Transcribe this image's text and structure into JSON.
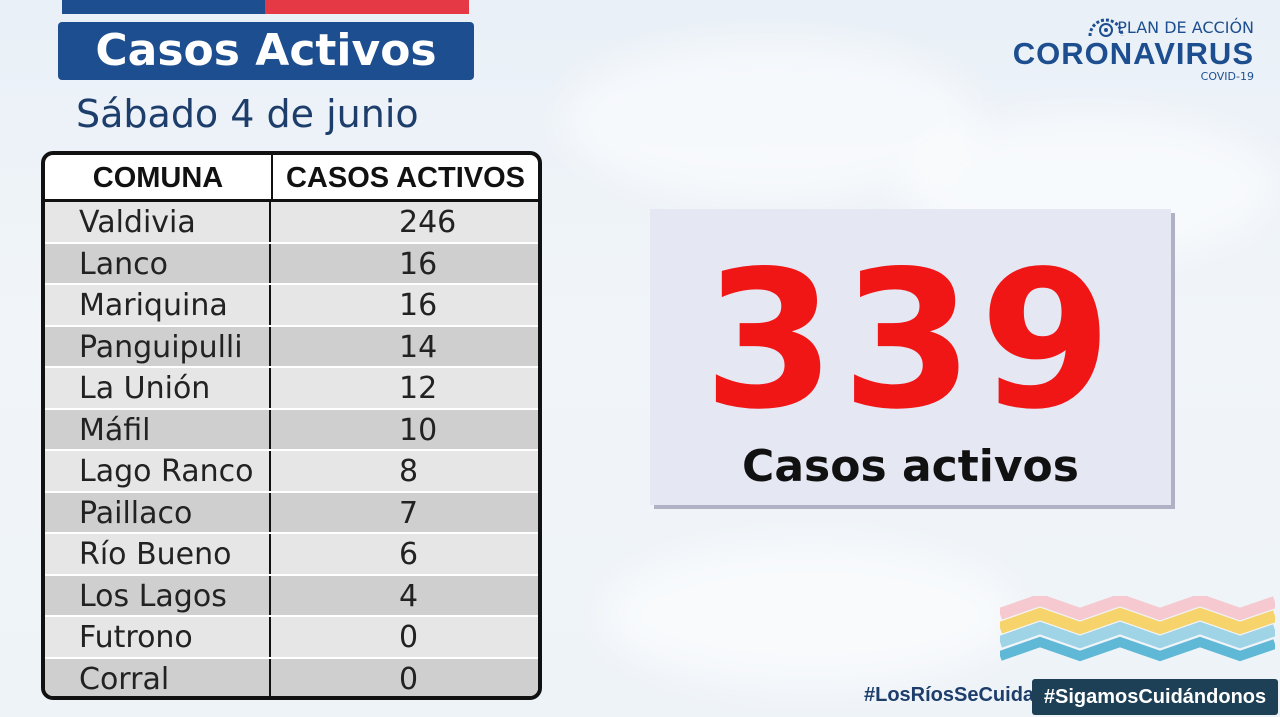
{
  "header": {
    "title": "Casos Activos",
    "date": "Sábado 4 de junio"
  },
  "logo": {
    "plan": "PLAN DE ACCIÓN",
    "main": "CORONAVIRUS",
    "sub": "COVID-19"
  },
  "table": {
    "headers": [
      "COMUNA",
      "CASOS ACTIVOS"
    ],
    "rows": [
      {
        "comuna": "Valdivia",
        "casos": "246"
      },
      {
        "comuna": "Lanco",
        "casos": "16"
      },
      {
        "comuna": "Mariquina",
        "casos": "16"
      },
      {
        "comuna": "Panguipulli",
        "casos": "14"
      },
      {
        "comuna": "La Unión",
        "casos": "12"
      },
      {
        "comuna": "Máfil",
        "casos": "10"
      },
      {
        "comuna": "Lago Ranco",
        "casos": "8"
      },
      {
        "comuna": "Paillaco",
        "casos": "7"
      },
      {
        "comuna": "Río Bueno",
        "casos": "6"
      },
      {
        "comuna": "Los Lagos",
        "casos": "4"
      },
      {
        "comuna": "Futrono",
        "casos": "0"
      },
      {
        "comuna": "Corral",
        "casos": "0"
      }
    ]
  },
  "total": {
    "value": "339",
    "label": "Casos activos"
  },
  "hashtags": {
    "left": "#LosRíosSeCuida",
    "right": "#SigamosCuidándonos"
  },
  "colors": {
    "brand_blue": "#1d4e8f",
    "brand_red": "#e63946",
    "total_red": "#f01616"
  }
}
